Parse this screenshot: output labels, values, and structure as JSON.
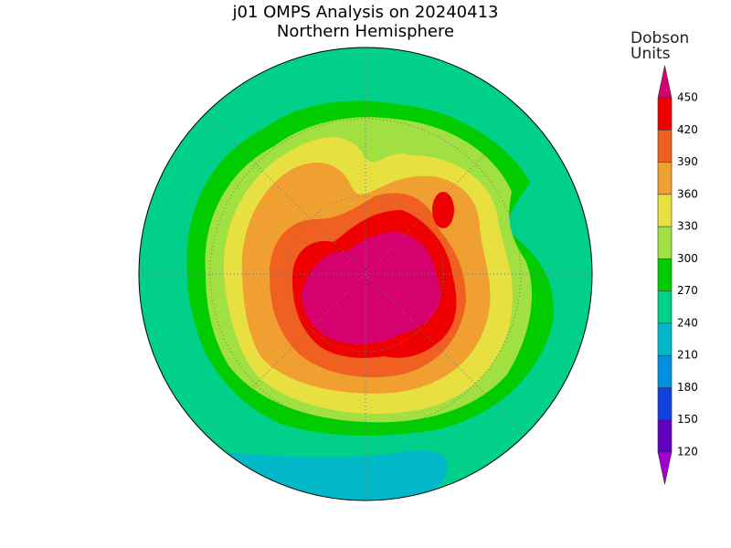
{
  "title": "j01 OMPS Analysis on 20240413",
  "subtitle": "Northern Hemisphere",
  "colorbar": {
    "title": "Dobson Units",
    "levels": [
      120,
      150,
      180,
      210,
      240,
      270,
      300,
      330,
      360,
      390,
      420,
      450
    ],
    "colors": [
      "#a000d0",
      "#6000c0",
      "#1040e0",
      "#0090e0",
      "#00b8c8",
      "#00d08a",
      "#00cc00",
      "#a0e040",
      "#e8e040",
      "#f0a030",
      "#f06020",
      "#ee0000",
      "#d6006e"
    ]
  }
}
